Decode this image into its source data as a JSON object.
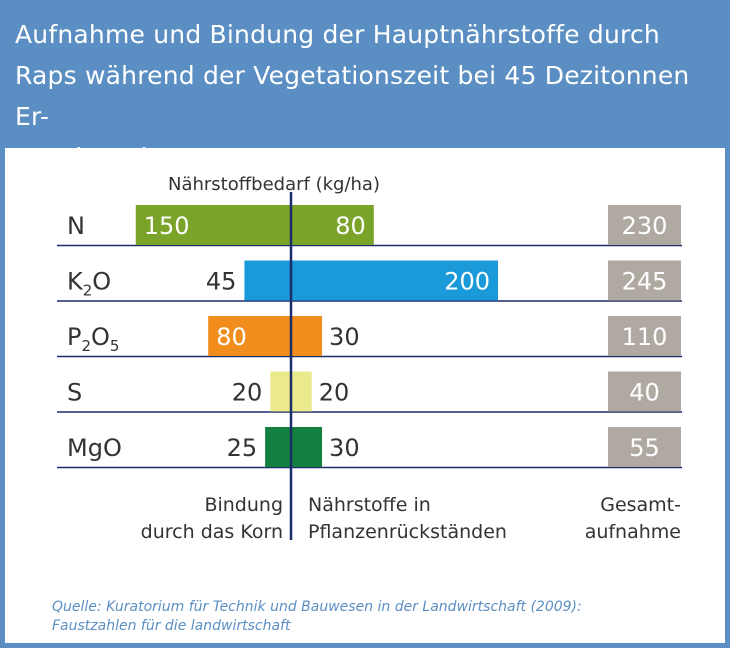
{
  "title": {
    "line1": "Aufnahme und Bindung der Hauptnährstoffe durch",
    "line2": "Raps während der Vegetationszeit bei 45 Dezitonnen Er-",
    "line3": "trag je Hektar"
  },
  "source": {
    "line1": "Quelle: Kuratorium für Technik und Bauwesen in der Landwirtschaft (2009):",
    "line2": "Faustzahlen für die landwirtschaft"
  },
  "colors": {
    "frame": "#5b8fc3",
    "axis": "#1b2d6b",
    "total_box": "#b0a9a2",
    "N": "#7aa32a",
    "K2O": "#1b9ad9",
    "P2O5": "#f08d1c",
    "S": "#eae98b",
    "MgO": "#13803f"
  },
  "chart_data": {
    "type": "bar",
    "orientation": "horizontal-diverging",
    "title": "Nährstoffbedarf (kg/ha)",
    "categories": [
      "N",
      "K2O",
      "P2O5",
      "S",
      "MgO"
    ],
    "category_labels": [
      {
        "base": "N",
        "sub1": "",
        "mid": "",
        "sub2": ""
      },
      {
        "base": "K",
        "sub1": "2",
        "mid": "O",
        "sub2": ""
      },
      {
        "base": "P",
        "sub1": "2",
        "mid": "O",
        "sub2": "5"
      },
      {
        "base": "S",
        "sub1": "",
        "mid": "",
        "sub2": ""
      },
      {
        "base": "MgO",
        "sub1": "",
        "mid": "",
        "sub2": ""
      }
    ],
    "series": [
      {
        "name": "Bindung durch das Korn",
        "values": [
          150,
          45,
          80,
          20,
          25
        ]
      },
      {
        "name": "Nährstoffe in Pflanzenrückständen",
        "values": [
          80,
          200,
          30,
          20,
          30
        ]
      }
    ],
    "totals": {
      "name": "Gesamtaufnahme",
      "values": [
        230,
        245,
        110,
        40,
        55
      ]
    },
    "legend_labels": {
      "left": [
        "Bindung",
        "durch das Korn"
      ],
      "middle": [
        "Nährstoffe in",
        "Pflanzenrückständen"
      ],
      "right": [
        "Gesamt-",
        "aufnahme"
      ]
    }
  }
}
